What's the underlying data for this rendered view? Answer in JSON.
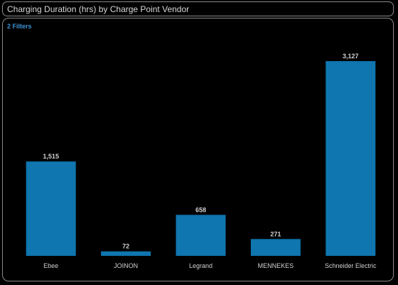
{
  "header": {
    "title": "Charging Duration (hrs) by Charge Point Vendor"
  },
  "filters": {
    "label": "2 Filters"
  },
  "colors": {
    "bar": "#0f76b0",
    "filter_link": "#3d93d6",
    "background": "#000000"
  },
  "chart_data": {
    "type": "bar",
    "title": "Charging Duration (hrs) by Charge Point Vendor",
    "categories": [
      "Ebee",
      "JOINON",
      "Legrand",
      "MENNEKES",
      "Schneider Electric"
    ],
    "values": [
      1515,
      72,
      658,
      271,
      3127
    ],
    "value_labels": [
      "1,515",
      "72",
      "658",
      "271",
      "3,127"
    ],
    "xlabel": "",
    "ylabel": "",
    "ylim": [
      0,
      3127
    ],
    "grid": false,
    "legend": "none"
  }
}
